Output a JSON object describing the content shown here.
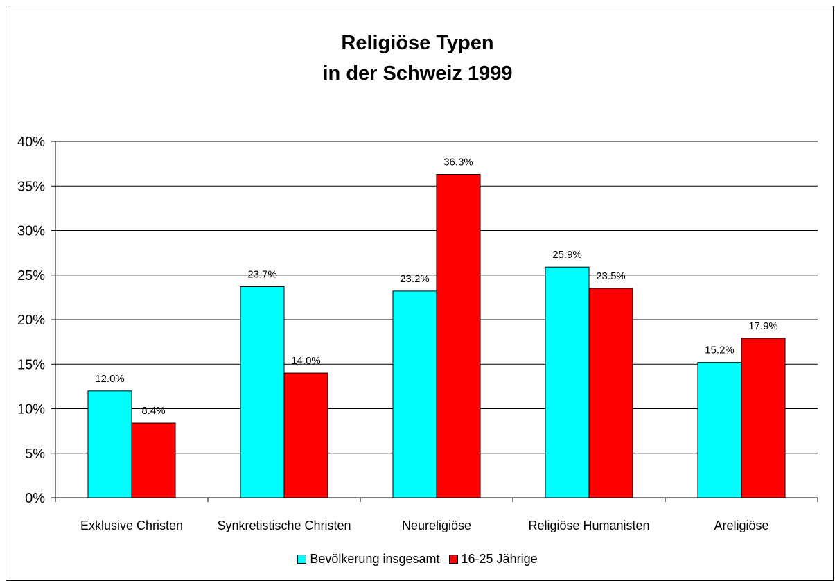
{
  "chart_data": {
    "type": "bar",
    "title_lines": [
      "Religiöse Typen",
      "in der Schweiz 1999"
    ],
    "categories": [
      "Exklusive Christen",
      "Synkretistische Christen",
      "Neureligiöse",
      "Religiöse Humanisten",
      "Areligiöse"
    ],
    "series": [
      {
        "name": "Bevölkerung insgesamt",
        "color": "#00FFFF",
        "values": [
          12.0,
          23.7,
          23.2,
          25.9,
          15.2
        ],
        "labels": [
          "12.0%",
          "23.7%",
          "23.2%",
          "25.9%",
          "15.2%"
        ]
      },
      {
        "name": "16-25 Jährige",
        "color": "#FF0000",
        "values": [
          8.4,
          14.0,
          36.3,
          23.5,
          17.9
        ],
        "labels": [
          "8.4%",
          "14.0%",
          "36.3%",
          "23.5%",
          "17.9%"
        ]
      }
    ],
    "yticks": [
      "0%",
      "5%",
      "10%",
      "15%",
      "20%",
      "25%",
      "30%",
      "35%",
      "40%"
    ],
    "ylim": [
      0,
      40
    ],
    "ystep": 5,
    "grid": true,
    "legend_position": "bottom"
  }
}
